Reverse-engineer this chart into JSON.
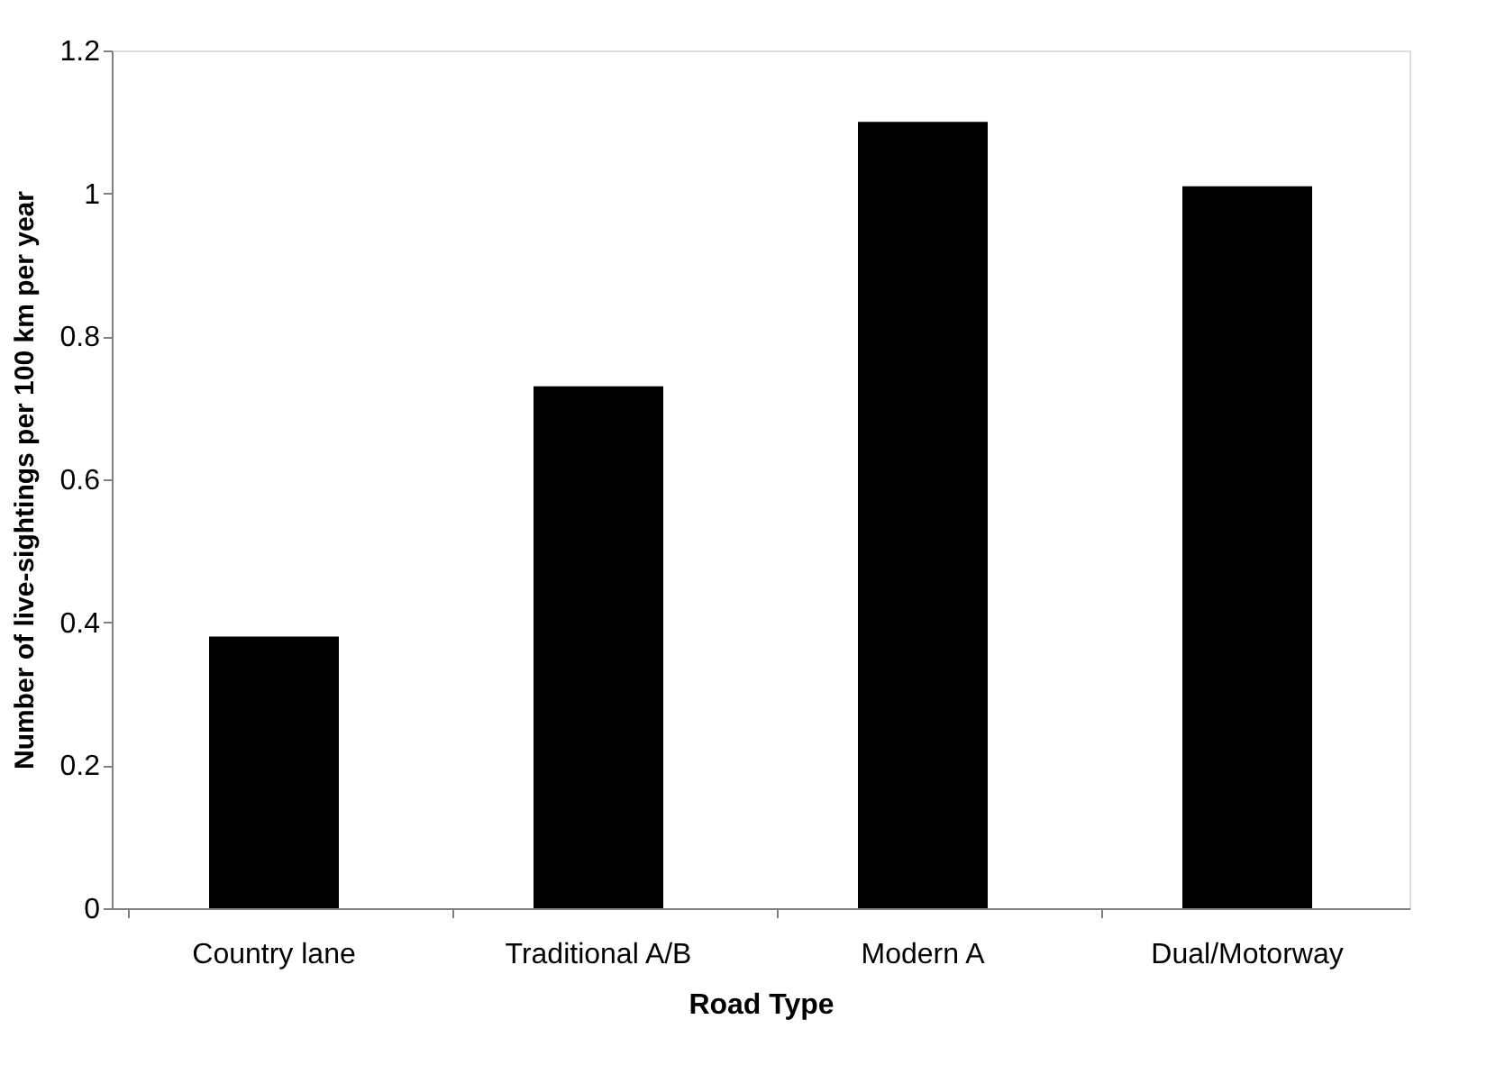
{
  "chart_data": {
    "type": "bar",
    "xlabel": "Road Type",
    "ylabel": "Number of live-sightings per 100 km per year",
    "categories": [
      "Country lane",
      "Traditional A/B",
      "Modern A",
      "Dual/Motorway"
    ],
    "values": [
      0.38,
      0.73,
      1.1,
      1.01
    ],
    "color": "#000000",
    "ylim": [
      0,
      1.2
    ],
    "yticks": [
      0,
      0.2,
      0.4,
      0.6,
      0.8,
      1,
      1.2
    ],
    "grid": false,
    "legend": false
  }
}
